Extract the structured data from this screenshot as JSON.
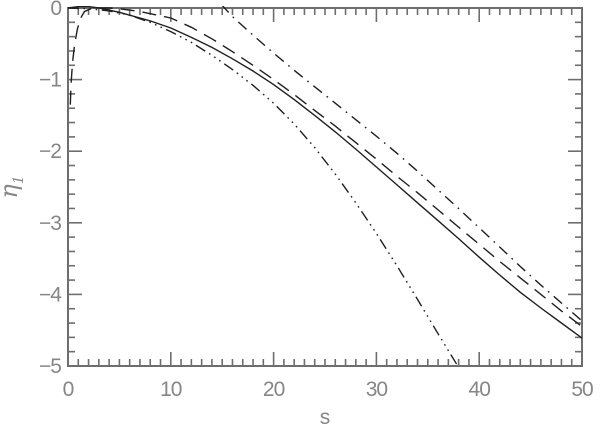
{
  "figure": {
    "background": "#ffffff"
  },
  "chart_data": {
    "type": "line",
    "title": "",
    "xlabel": "s",
    "ylabel_symbol": "η",
    "ylabel_subscript": "1",
    "xlim": [
      0,
      50
    ],
    "ylim": [
      -5,
      0
    ],
    "x_major_ticks": [
      0,
      10,
      20,
      30,
      40,
      50
    ],
    "x_tick_labels": [
      "0",
      "10",
      "20",
      "30",
      "40",
      "50"
    ],
    "x_minor_step": 1,
    "y_major_ticks": [
      0,
      -1,
      -2,
      -3,
      -4,
      -5
    ],
    "y_tick_labels": [
      "0",
      "−1",
      "−2",
      "−3",
      "−4",
      "−5"
    ],
    "y_minor_step": 0.2,
    "grid": false,
    "legend": "none",
    "axis_color": "#6e6e6e",
    "curve_color": "#1f1f1f",
    "label_color": "#868686",
    "series": [
      {
        "name": "solid",
        "style": "solid",
        "points": [
          [
            0,
            0
          ],
          [
            1,
            0.02
          ],
          [
            2,
            0.02
          ],
          [
            3,
            0
          ],
          [
            4,
            -0.03
          ],
          [
            5,
            -0.06
          ],
          [
            6,
            -0.1
          ],
          [
            7,
            -0.14
          ],
          [
            8,
            -0.18
          ],
          [
            10,
            -0.28
          ],
          [
            12,
            -0.41
          ],
          [
            14,
            -0.55
          ],
          [
            16,
            -0.71
          ],
          [
            18,
            -0.88
          ],
          [
            20,
            -1.07
          ],
          [
            22,
            -1.28
          ],
          [
            24,
            -1.5
          ],
          [
            26,
            -1.73
          ],
          [
            28,
            -1.97
          ],
          [
            30,
            -2.22
          ],
          [
            32,
            -2.47
          ],
          [
            34,
            -2.72
          ],
          [
            36,
            -2.97
          ],
          [
            38,
            -3.22
          ],
          [
            40,
            -3.48
          ],
          [
            42,
            -3.73
          ],
          [
            44,
            -3.97
          ],
          [
            46,
            -4.19
          ],
          [
            48,
            -4.4
          ],
          [
            50,
            -4.61
          ]
        ]
      },
      {
        "name": "dashed",
        "style": "long-dash",
        "points": [
          [
            0.22,
            -1.35
          ],
          [
            0.3,
            -1.05
          ],
          [
            0.45,
            -0.75
          ],
          [
            0.65,
            -0.5
          ],
          [
            0.9,
            -0.3
          ],
          [
            1.2,
            -0.15
          ],
          [
            1.6,
            -0.05
          ],
          [
            2.2,
            -0.01
          ],
          [
            3,
            0
          ],
          [
            4,
            0
          ],
          [
            5,
            -0.01
          ],
          [
            6,
            -0.03
          ],
          [
            7,
            -0.05
          ],
          [
            8,
            -0.08
          ],
          [
            10,
            -0.14
          ],
          [
            12,
            -0.27
          ],
          [
            14,
            -0.43
          ],
          [
            16,
            -0.61
          ],
          [
            18,
            -0.8
          ],
          [
            20,
            -1.0
          ],
          [
            22,
            -1.21
          ],
          [
            24,
            -1.43
          ],
          [
            26,
            -1.65
          ],
          [
            28,
            -1.88
          ],
          [
            30,
            -2.11
          ],
          [
            32,
            -2.35
          ],
          [
            34,
            -2.58
          ],
          [
            36,
            -2.82
          ],
          [
            38,
            -3.06
          ],
          [
            40,
            -3.3
          ],
          [
            42,
            -3.54
          ],
          [
            44,
            -3.77
          ],
          [
            46,
            -4.0
          ],
          [
            48,
            -4.23
          ],
          [
            50,
            -4.45
          ]
        ]
      },
      {
        "name": "dash-dot",
        "style": "dash-dot",
        "points": [
          [
            14.9,
            0.05
          ],
          [
            16,
            -0.12
          ],
          [
            18,
            -0.38
          ],
          [
            20,
            -0.63
          ],
          [
            22,
            -0.87
          ],
          [
            24,
            -1.1
          ],
          [
            26,
            -1.33
          ],
          [
            28,
            -1.56
          ],
          [
            30,
            -1.79
          ],
          [
            32,
            -2.03
          ],
          [
            34,
            -2.28
          ],
          [
            36,
            -2.54
          ],
          [
            38,
            -2.8
          ],
          [
            40,
            -3.07
          ],
          [
            42,
            -3.34
          ],
          [
            44,
            -3.61
          ],
          [
            46,
            -3.87
          ],
          [
            48,
            -4.12
          ],
          [
            50,
            -4.37
          ]
        ]
      },
      {
        "name": "dash-dot-dot-dot",
        "style": "dash-dot-dot-dot",
        "points": [
          [
            0,
            0
          ],
          [
            2,
            -0.01
          ],
          [
            4,
            -0.04
          ],
          [
            6,
            -0.1
          ],
          [
            8,
            -0.2
          ],
          [
            10,
            -0.33
          ],
          [
            12,
            -0.48
          ],
          [
            14,
            -0.66
          ],
          [
            16,
            -0.86
          ],
          [
            18,
            -1.08
          ],
          [
            20,
            -1.33
          ],
          [
            22,
            -1.62
          ],
          [
            24,
            -1.95
          ],
          [
            26,
            -2.32
          ],
          [
            28,
            -2.72
          ],
          [
            30,
            -3.15
          ],
          [
            32,
            -3.6
          ],
          [
            34,
            -4.07
          ],
          [
            36,
            -4.55
          ],
          [
            38,
            -5.02
          ],
          [
            38.6,
            -5.2
          ]
        ]
      }
    ]
  }
}
